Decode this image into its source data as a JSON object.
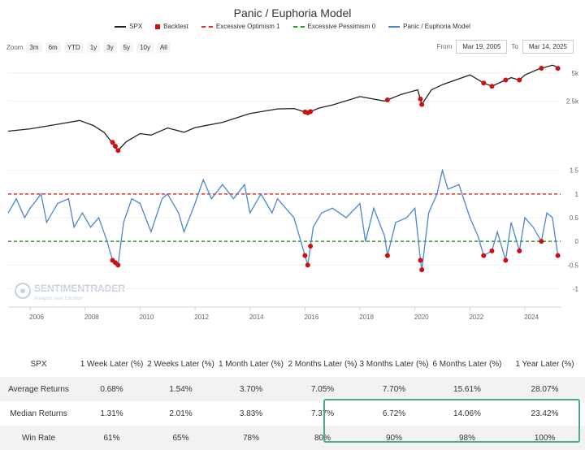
{
  "title": "Panic / Euphoria Model",
  "legend": [
    {
      "label": "SPX",
      "color": "#222222",
      "kind": "line"
    },
    {
      "label": "Backtest",
      "color": "#cc1111",
      "kind": "square"
    },
    {
      "label": "Excessive Optimism 1",
      "color": "#dd3333",
      "kind": "dash"
    },
    {
      "label": "Excessive Pessimism 0",
      "color": "#2a9a2a",
      "kind": "dash"
    },
    {
      "label": "Panic / Euphoria Model",
      "color": "#4a86d0",
      "kind": "line"
    }
  ],
  "zoom": {
    "label": "Zoom",
    "buttons": [
      "3m",
      "6m",
      "YTD",
      "1y",
      "3y",
      "5y",
      "10y",
      "All"
    ]
  },
  "range": {
    "from_label": "From",
    "from_value": "Mar 19, 2005",
    "to_label": "To",
    "to_value": "Mar 14, 2025"
  },
  "chart_data": {
    "type": "line",
    "x_range": [
      2005.2,
      2025.3
    ],
    "x_ticks": [
      "2006",
      "2008",
      "2010",
      "2012",
      "2014",
      "2016",
      "2018",
      "2020",
      "2022",
      "2024"
    ],
    "x_tick_values": [
      2006,
      2008,
      2010,
      2012,
      2014,
      2016,
      2018,
      2020,
      2022,
      2024
    ],
    "upper": {
      "series": "SPX",
      "scale": "log",
      "y_range": [
        700,
        7000
      ],
      "y_ticks": [
        "5k",
        "2.5k"
      ],
      "y_tick_values": [
        5000,
        2500
      ],
      "points": [
        [
          2005.2,
          1190
        ],
        [
          2006.0,
          1260
        ],
        [
          2007.0,
          1410
        ],
        [
          2007.8,
          1550
        ],
        [
          2008.3,
          1370
        ],
        [
          2008.7,
          1150
        ],
        [
          2009.2,
          740
        ],
        [
          2009.5,
          920
        ],
        [
          2010.0,
          1120
        ],
        [
          2010.4,
          1080
        ],
        [
          2011.0,
          1290
        ],
        [
          2011.6,
          1160
        ],
        [
          2012.0,
          1300
        ],
        [
          2013.0,
          1480
        ],
        [
          2014.0,
          1840
        ],
        [
          2015.0,
          2060
        ],
        [
          2015.6,
          2080
        ],
        [
          2016.1,
          1870
        ],
        [
          2016.5,
          2100
        ],
        [
          2017.0,
          2270
        ],
        [
          2018.0,
          2790
        ],
        [
          2018.9,
          2500
        ],
        [
          2019.5,
          2950
        ],
        [
          2020.1,
          3300
        ],
        [
          2020.25,
          2300
        ],
        [
          2020.6,
          3300
        ],
        [
          2021.0,
          3750
        ],
        [
          2022.0,
          4770
        ],
        [
          2022.5,
          3900
        ],
        [
          2022.8,
          3600
        ],
        [
          2023.0,
          3840
        ],
        [
          2023.5,
          4450
        ],
        [
          2023.8,
          4200
        ],
        [
          2024.0,
          4760
        ],
        [
          2024.5,
          5500
        ],
        [
          2025.0,
          6050
        ],
        [
          2025.1,
          5900
        ],
        [
          2025.2,
          5600
        ]
      ]
    },
    "lower": {
      "series": "Panic / Euphoria Model",
      "y_range": [
        -1.3,
        1.7
      ],
      "y_ticks": [
        "1.5",
        "1",
        "0.5",
        "0",
        "-0.5",
        "-1"
      ],
      "y_tick_values": [
        1.5,
        1,
        0.5,
        0,
        -0.5,
        -1
      ],
      "excessive_optimism": 1,
      "excessive_pessimism": 0,
      "points": [
        [
          2005.2,
          0.6
        ],
        [
          2005.5,
          0.9
        ],
        [
          2005.8,
          0.5
        ],
        [
          2006.0,
          0.7
        ],
        [
          2006.4,
          1.0
        ],
        [
          2006.6,
          0.4
        ],
        [
          2007.0,
          0.8
        ],
        [
          2007.4,
          0.9
        ],
        [
          2007.6,
          0.3
        ],
        [
          2007.9,
          0.6
        ],
        [
          2008.2,
          0.3
        ],
        [
          2008.5,
          0.5
        ],
        [
          2008.8,
          0.0
        ],
        [
          2009.0,
          -0.4
        ],
        [
          2009.2,
          -0.5
        ],
        [
          2009.4,
          0.4
        ],
        [
          2009.7,
          0.9
        ],
        [
          2010.0,
          0.8
        ],
        [
          2010.4,
          0.2
        ],
        [
          2010.8,
          0.9
        ],
        [
          2011.0,
          1.0
        ],
        [
          2011.4,
          0.6
        ],
        [
          2011.6,
          0.2
        ],
        [
          2012.0,
          0.8
        ],
        [
          2012.3,
          1.3
        ],
        [
          2012.6,
          0.9
        ],
        [
          2013.0,
          1.2
        ],
        [
          2013.4,
          0.9
        ],
        [
          2013.8,
          1.2
        ],
        [
          2014.0,
          0.6
        ],
        [
          2014.4,
          1.0
        ],
        [
          2014.8,
          0.6
        ],
        [
          2015.0,
          0.9
        ],
        [
          2015.6,
          0.5
        ],
        [
          2015.8,
          0.1
        ],
        [
          2016.0,
          -0.3
        ],
        [
          2016.1,
          -0.5
        ],
        [
          2016.3,
          0.3
        ],
        [
          2016.6,
          0.6
        ],
        [
          2017.0,
          0.7
        ],
        [
          2017.5,
          0.5
        ],
        [
          2018.0,
          0.8
        ],
        [
          2018.2,
          0.0
        ],
        [
          2018.5,
          0.7
        ],
        [
          2018.9,
          0.1
        ],
        [
          2019.0,
          -0.3
        ],
        [
          2019.3,
          0.4
        ],
        [
          2019.7,
          0.5
        ],
        [
          2020.0,
          0.7
        ],
        [
          2020.2,
          -0.4
        ],
        [
          2020.25,
          -0.6
        ],
        [
          2020.5,
          0.6
        ],
        [
          2020.8,
          1.0
        ],
        [
          2021.0,
          1.5
        ],
        [
          2021.2,
          1.1
        ],
        [
          2021.6,
          1.2
        ],
        [
          2022.0,
          0.5
        ],
        [
          2022.3,
          0.1
        ],
        [
          2022.5,
          -0.3
        ],
        [
          2022.8,
          -0.2
        ],
        [
          2023.0,
          0.2
        ],
        [
          2023.3,
          -0.4
        ],
        [
          2023.5,
          0.4
        ],
        [
          2023.8,
          -0.2
        ],
        [
          2024.0,
          0.5
        ],
        [
          2024.3,
          0.3
        ],
        [
          2024.6,
          0.0
        ],
        [
          2024.8,
          0.6
        ],
        [
          2025.0,
          0.5
        ],
        [
          2025.2,
          -0.3
        ]
      ]
    },
    "backtest_points": [
      2009.0,
      2009.1,
      2009.2,
      2016.0,
      2016.1,
      2016.2,
      2019.0,
      2020.2,
      2020.25,
      2022.5,
      2022.8,
      2023.3,
      2023.8,
      2024.6,
      2025.2
    ]
  },
  "watermark": {
    "name": "SENTIMENTRADER",
    "tagline": "Analysis over Emotion"
  },
  "table": {
    "headers": [
      "SPX",
      "1 Week Later (%)",
      "2 Weeks Later (%)",
      "1 Month Later (%)",
      "2 Months Later (%)",
      "3 Months Later (%)",
      "6 Months Later (%)",
      "1 Year Later (%)"
    ],
    "rows": [
      {
        "label": "Average Returns",
        "values": [
          "0.68%",
          "1.54%",
          "3.70%",
          "7.05%",
          "7.70%",
          "15.61%",
          "28.07%"
        ]
      },
      {
        "label": "Median Returns",
        "values": [
          "1.31%",
          "2.01%",
          "3.83%",
          "7.37%",
          "6.72%",
          "14.06%",
          "23.42%"
        ]
      },
      {
        "label": "Win Rate",
        "values": [
          "61%",
          "65%",
          "78%",
          "80%",
          "90%",
          "98%",
          "100%"
        ]
      }
    ]
  }
}
